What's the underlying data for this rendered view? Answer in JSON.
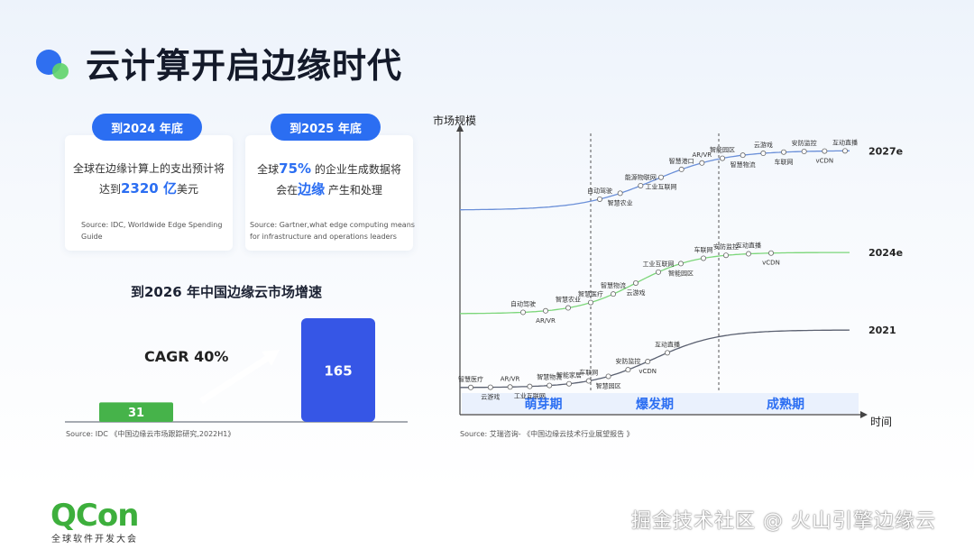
{
  "title": "云计算开启边缘时代",
  "card_left": {
    "pill": "到2024 年底",
    "line1": "全球在边缘计算上的支出预计将",
    "line2_pre": "达到",
    "line2_highlight": "2320 亿",
    "line2_post": "美元",
    "source_line1": "Source: IDC, Worldwide Edge Spending",
    "source_line2": "Guide"
  },
  "card_right": {
    "pill": "到2025 年底",
    "line1_pre": "全球",
    "line1_highlight": "75%",
    "line1_post": " 的企业生成数据将",
    "line2_pre": "会在",
    "line2_highlight": "边缘",
    "line2_post": " 产生和处理",
    "source_line1": "Source: Gartner,what edge computing means",
    "source_line2": "for infrastructure and operations leaders"
  },
  "bar_chart_source": "Source: IDC 《中国边缘云市场跟踪研究,2022H1》",
  "line_chart_source": "Source: 艾瑞咨询- 《中国边缘云技术行业展望报告 》",
  "footer": {
    "logo": "QCon",
    "logo_sub": "全球软件开发大会",
    "watermark": "掘金技术社区 @ 火山引擎边缘云"
  },
  "colors": {
    "primary": "#2b6ef2",
    "green": "#46b34a",
    "bar_blue": "#3656e6",
    "curve_blue": "#6a8fd8",
    "curve_green": "#7cd67a",
    "curve_gray": "#5a6070"
  },
  "chart_data": [
    {
      "type": "bar",
      "title": "到2026 年中国边缘云市场增速",
      "categories": [
        "",
        ""
      ],
      "values": [
        31,
        165
      ],
      "annotation": "CAGR 40%",
      "xlabel": "",
      "ylabel": "",
      "colors": [
        "#46b34a",
        "#3656e6"
      ]
    },
    {
      "type": "line",
      "xlabel": "时间",
      "ylabel": "市场规模",
      "phases": [
        "萌芽期",
        "爆发期",
        "成熟期"
      ],
      "series": [
        {
          "name": "2027e",
          "color": "#6a8fd8",
          "points_above": [
            "自动驾驶",
            "能源物联网",
            "智慧港口",
            "AR/VR",
            "智能园区",
            "云游戏",
            "安防监控",
            "互动直播"
          ],
          "points_below": [
            "智慧农业",
            "工业互联网",
            "智慧物流",
            "车联网",
            "vCDN"
          ]
        },
        {
          "name": "2024e",
          "color": "#7cd67a",
          "points_above": [
            "自动驾驶",
            "智慧农业",
            "智慧医疗",
            "智慧物流",
            "工业互联网",
            "车联网",
            "安防监控",
            "互动直播"
          ],
          "points_below": [
            "AR/VR",
            "云游戏",
            "智能园区",
            "vCDN"
          ]
        },
        {
          "name": "2021",
          "color": "#5a6070",
          "points_above": [
            "智慧医疗",
            "AR/VR",
            "智慧物流",
            "智能家居",
            "车联网",
            "安防监控",
            "互动直播"
          ],
          "points_below": [
            "云游戏",
            "工业互联网",
            "智慧园区",
            "vCDN"
          ]
        }
      ]
    }
  ]
}
